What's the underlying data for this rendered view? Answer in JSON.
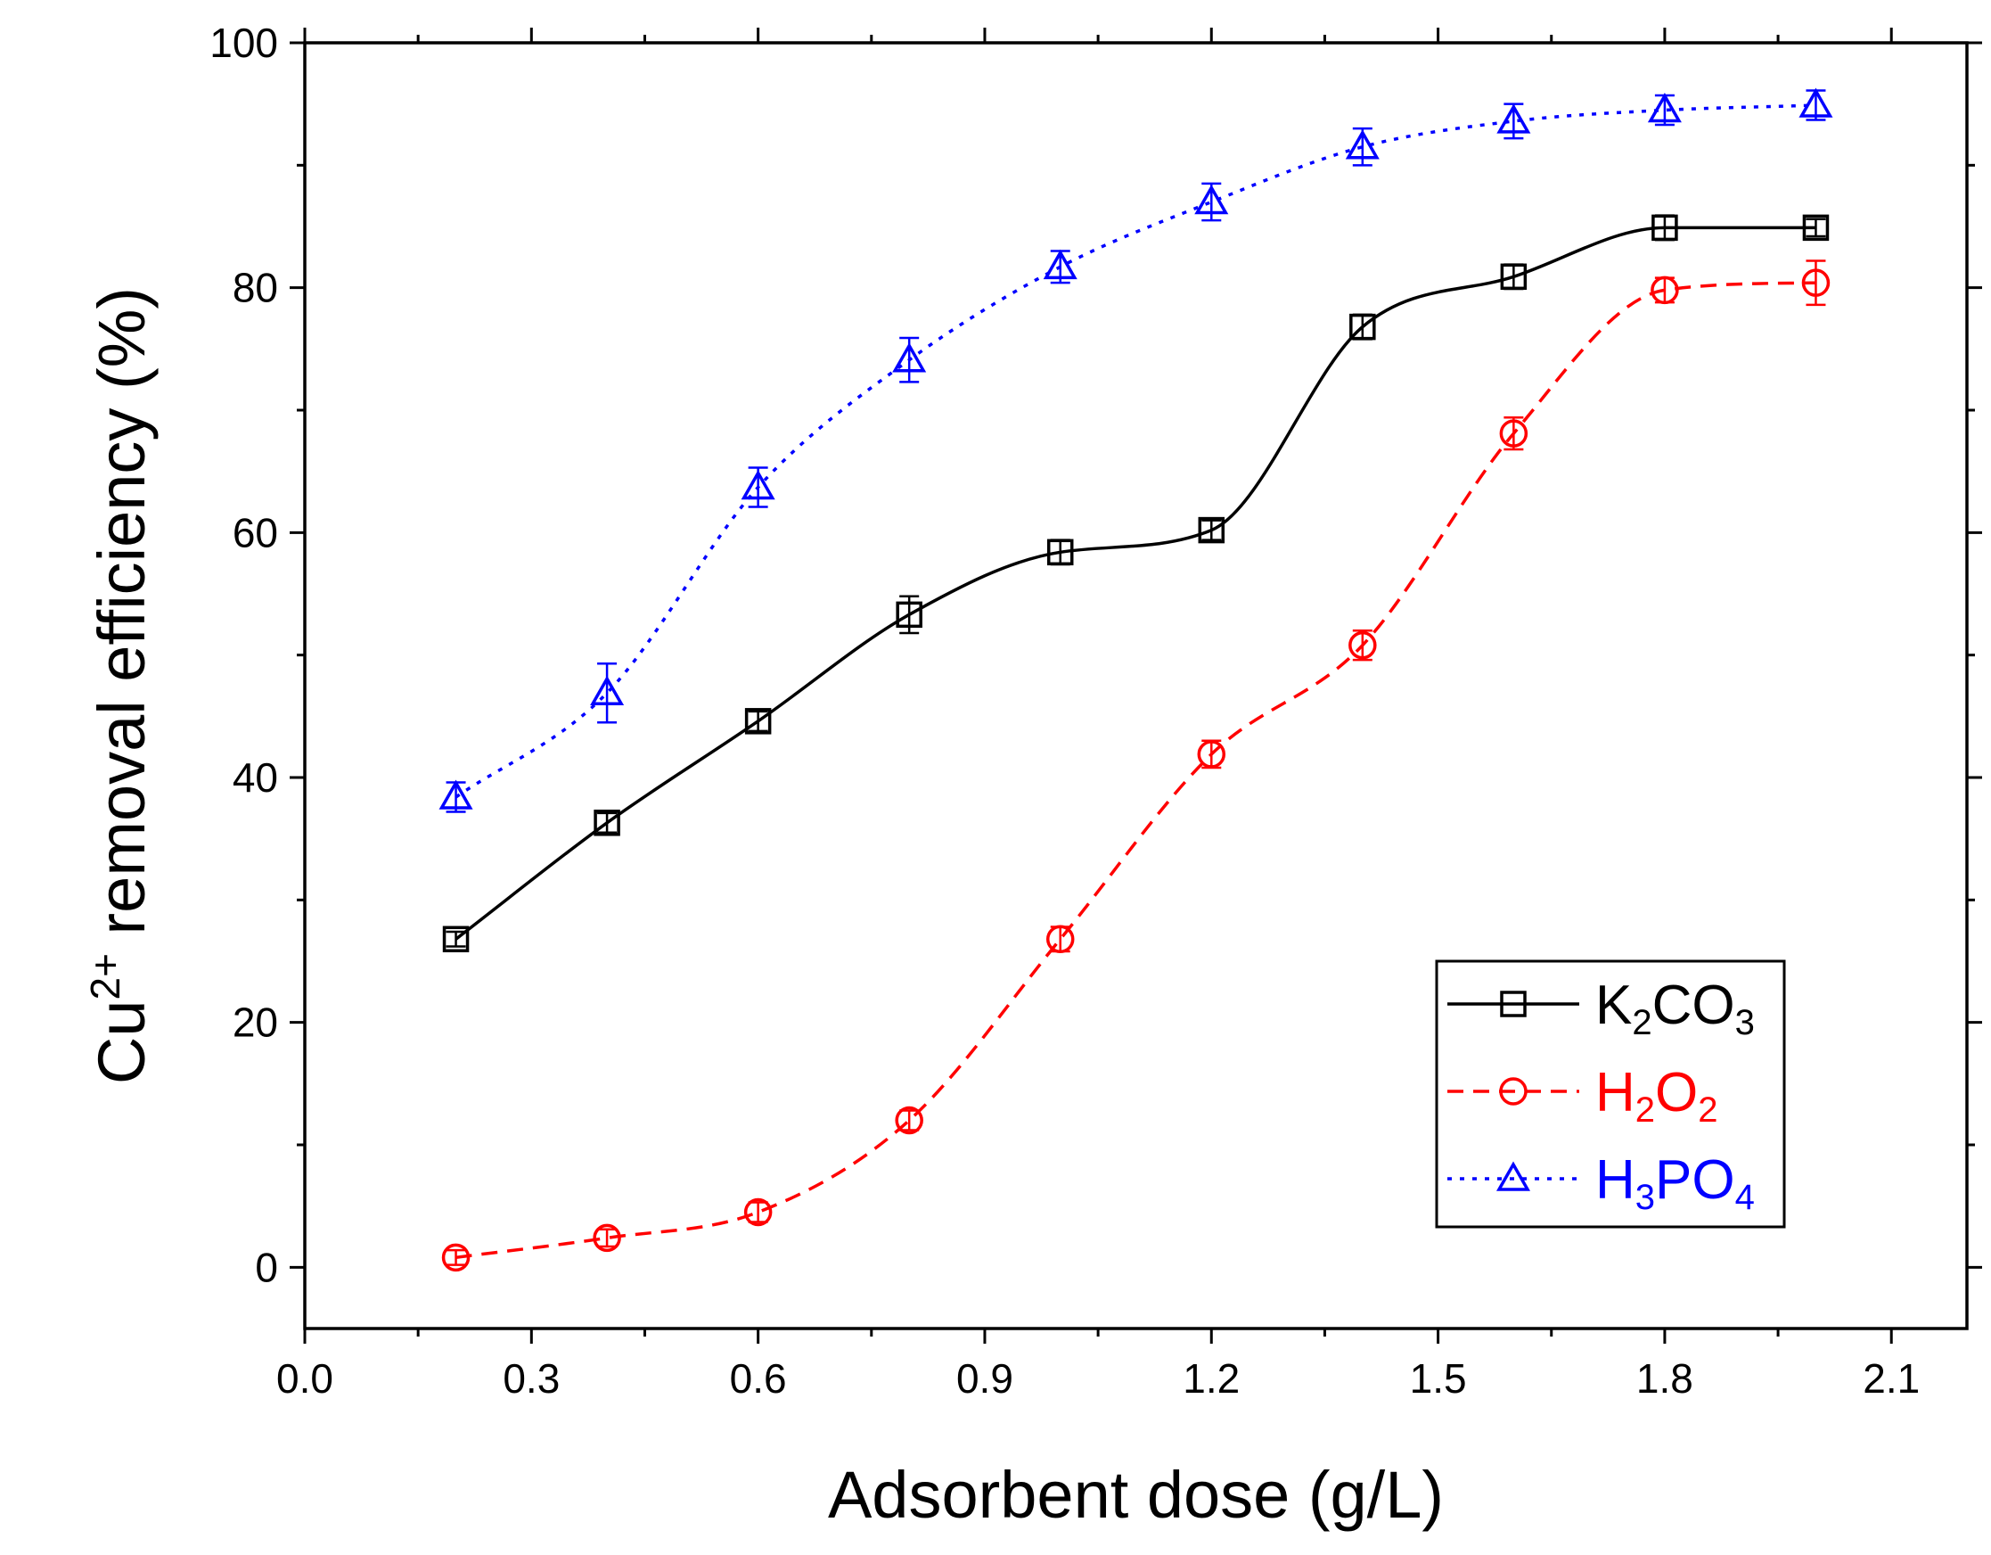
{
  "chart_data": {
    "type": "line",
    "title": "",
    "xlabel": "Adsorbent dose (g/L)",
    "ylabel": {
      "prefix": "Cu",
      "superscript": "2+",
      "suffix": " removal efficiency (%)"
    },
    "xlim": [
      0.0,
      2.2
    ],
    "ylim": [
      -5,
      100
    ],
    "xticks": [
      0.0,
      0.3,
      0.6,
      0.9,
      1.2,
      1.5,
      1.8,
      2.1
    ],
    "xtick_labels": [
      "0.0",
      "0.3",
      "0.6",
      "0.9",
      "1.2",
      "1.5",
      "1.8",
      "2.1"
    ],
    "yticks": [
      0,
      20,
      40,
      60,
      80,
      100
    ],
    "ytick_labels": [
      "0",
      "20",
      "40",
      "60",
      "80",
      "100"
    ],
    "legend_position": "bottom-right",
    "grid": false,
    "x": [
      0.2,
      0.4,
      0.6,
      0.8,
      1.0,
      1.2,
      1.4,
      1.6,
      1.8,
      2.0
    ],
    "series": [
      {
        "name": "K2CO3",
        "label_parts": [
          [
            "K",
            ""
          ],
          [
            "2",
            "sub"
          ],
          [
            "CO",
            ""
          ],
          [
            "3",
            "sub"
          ]
        ],
        "color": "#000000",
        "line_style": "solid",
        "marker": "square",
        "values": [
          26.8,
          36.3,
          44.6,
          53.3,
          58.4,
          60.2,
          76.8,
          80.9,
          84.9,
          84.9
        ],
        "errors": [
          0.6,
          0.8,
          0.8,
          1.5,
          1.0,
          0.8,
          1.0,
          1.0,
          1.0,
          0.7
        ]
      },
      {
        "name": "H2O2",
        "label_parts": [
          [
            "H",
            ""
          ],
          [
            "2",
            "sub"
          ],
          [
            "O",
            ""
          ],
          [
            "2",
            "sub"
          ]
        ],
        "color": "#ff0000",
        "line_style": "dashed",
        "marker": "circle",
        "values": [
          0.8,
          2.4,
          4.5,
          12.0,
          26.8,
          41.9,
          50.8,
          68.1,
          79.8,
          80.4
        ],
        "errors": [
          0.6,
          0.7,
          0.8,
          0.8,
          1.0,
          1.1,
          1.2,
          1.3,
          1.0,
          1.8
        ]
      },
      {
        "name": "H3PO4",
        "label_parts": [
          [
            "H",
            ""
          ],
          [
            "3",
            "sub"
          ],
          [
            "PO",
            ""
          ],
          [
            "4",
            "sub"
          ]
        ],
        "color": "#0000ff",
        "line_style": "dotted",
        "marker": "triangle",
        "values": [
          38.4,
          46.9,
          63.7,
          74.1,
          81.7,
          87.0,
          91.5,
          93.6,
          94.5,
          94.9
        ],
        "errors": [
          1.2,
          2.4,
          1.6,
          1.8,
          1.3,
          1.5,
          1.5,
          1.4,
          1.2,
          1.2
        ]
      }
    ]
  }
}
